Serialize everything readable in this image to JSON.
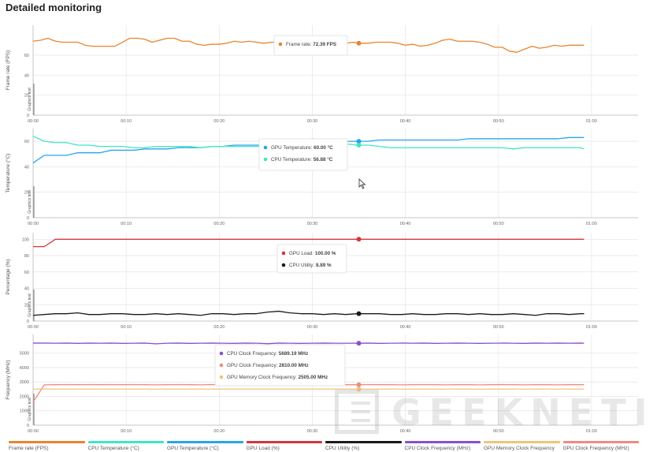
{
  "page": {
    "title": "Detailed monitoring"
  },
  "x_ticks": [
    "00:00",
    "00:10",
    "00:20",
    "00:30",
    "00:40",
    "00:50",
    "01:00"
  ],
  "side_label": "Graphics test",
  "colors": {
    "fps": "#e8842f",
    "cpu_temp": "#3ee6c6",
    "gpu_temp": "#27a6e6",
    "gpu_load": "#d3363c",
    "cpu_util": "#1a1a1a",
    "cpu_clock": "#8a4fc8",
    "gpu_clock": "#ef8a84",
    "gpu_mem": "#efc478",
    "grid": "#e4e4e4"
  },
  "chart_data": [
    {
      "type": "line",
      "ylabel": "Frame rate (FPS)",
      "ylim": [
        0,
        90
      ],
      "yticks": [
        0,
        20,
        40,
        60
      ],
      "x_range": [
        0,
        65
      ],
      "x": [
        0,
        0.8,
        1.6,
        2.4,
        3.2,
        4.0,
        4.8,
        5.6,
        6.4,
        7.2,
        8.0,
        8.8,
        9.6,
        10.4,
        11.2,
        12.0,
        12.8,
        13.6,
        14.4,
        15.2,
        16.0,
        16.8,
        17.6,
        18.4,
        19.2,
        20.0,
        20.8,
        21.6,
        22.4,
        23.2,
        24.0,
        24.8,
        25.6,
        26.4,
        27.2,
        28.0,
        28.8,
        29.6,
        30.4,
        31.2,
        32.0,
        32.8,
        33.6,
        34.4,
        35.2,
        36.0,
        36.8,
        37.6,
        38.4,
        39.2,
        40.0,
        40.8,
        41.6,
        42.4,
        43.2,
        44.0,
        44.8,
        45.6,
        46.4,
        47.2,
        48.0,
        48.8,
        49.6,
        50.4,
        51.2,
        52.0,
        52.8,
        53.6,
        54.4,
        55.2,
        56.0,
        56.8,
        57.6,
        58.4,
        59.2
      ],
      "series": [
        {
          "name": "Frame rate (FPS)",
          "values": [
            74,
            75,
            77,
            74,
            73,
            73,
            73,
            70,
            69,
            69,
            69,
            69,
            73,
            77,
            77,
            76,
            73,
            75,
            77,
            77,
            74,
            74,
            71,
            70,
            71,
            71,
            72,
            74,
            73,
            74,
            73,
            72,
            73,
            73,
            75,
            74,
            74,
            73,
            72,
            72,
            73,
            72,
            72,
            73,
            72,
            72,
            73,
            73,
            73,
            72,
            70,
            71,
            69,
            70,
            72,
            75,
            76,
            74,
            74,
            74,
            73,
            71,
            68,
            68,
            64,
            63,
            66,
            69,
            67,
            68,
            70,
            69,
            70,
            70,
            70
          ]
        }
      ],
      "tooltip": {
        "label": "Frame rate:",
        "value": "72.39 FPS"
      }
    },
    {
      "type": "line",
      "ylabel": "Temperature (°C)",
      "ylim": [
        0,
        70
      ],
      "yticks": [
        0,
        20,
        40,
        60
      ],
      "x_range": [
        0,
        65
      ],
      "x": [
        0,
        1.2,
        2.4,
        3.6,
        4.8,
        6.0,
        7.2,
        8.4,
        9.6,
        10.8,
        12.0,
        13.2,
        14.4,
        15.6,
        16.8,
        18.0,
        19.2,
        20.4,
        21.6,
        22.8,
        24.0,
        25.2,
        26.4,
        27.6,
        28.8,
        30.0,
        31.2,
        32.4,
        33.6,
        34.8,
        36.0,
        37.2,
        38.4,
        39.6,
        40.8,
        42.0,
        43.2,
        44.4,
        45.6,
        46.8,
        48.0,
        49.2,
        50.4,
        51.6,
        52.8,
        54.0,
        55.2,
        56.4,
        57.6,
        58.8,
        59.2
      ],
      "series": [
        {
          "name": "GPU Temperature (°C)",
          "values": [
            43,
            49,
            49,
            49,
            51,
            51,
            51,
            53,
            53,
            53,
            54,
            54,
            54,
            55,
            55,
            55,
            56,
            56,
            57,
            57,
            57,
            57,
            58,
            58,
            59,
            59,
            59,
            59,
            60,
            60,
            60,
            61,
            61,
            61,
            61,
            61,
            61,
            61,
            61,
            62,
            62,
            62,
            62,
            62,
            62,
            62,
            62,
            62,
            63,
            63,
            63
          ]
        },
        {
          "name": "CPU Temperature (°C)",
          "values": [
            64,
            60,
            59,
            59,
            57,
            57,
            56,
            56,
            56,
            55,
            55,
            56,
            56,
            56,
            56,
            55,
            56,
            56,
            56,
            56,
            56,
            56,
            56,
            58,
            60,
            62,
            60,
            58,
            58,
            57,
            57,
            56,
            55,
            55,
            55,
            55,
            55,
            55,
            55,
            55,
            55,
            55,
            55,
            54,
            55,
            55,
            55,
            55,
            55,
            55,
            54
          ]
        }
      ],
      "tooltip": [
        {
          "label": "GPU Temperature:",
          "value": "60.00 °C"
        },
        {
          "label": "CPU Temperature:",
          "value": "56.88 °C"
        }
      ]
    },
    {
      "type": "line",
      "ylabel": "Percentage (%)",
      "ylim": [
        0,
        108
      ],
      "yticks": [
        0,
        20,
        40,
        60,
        80,
        100
      ],
      "x_range": [
        0,
        65
      ],
      "x": [
        0,
        1.2,
        2.4,
        3.6,
        4.8,
        6.0,
        7.2,
        8.4,
        9.6,
        10.8,
        12.0,
        13.2,
        14.4,
        15.6,
        16.8,
        18.0,
        19.2,
        20.4,
        21.6,
        22.8,
        24.0,
        25.2,
        26.4,
        27.6,
        28.8,
        30.0,
        31.2,
        32.4,
        33.6,
        34.8,
        36.0,
        37.2,
        38.4,
        39.6,
        40.8,
        42.0,
        43.2,
        44.4,
        45.6,
        46.8,
        48.0,
        49.2,
        50.4,
        51.6,
        52.8,
        54.0,
        55.2,
        56.4,
        57.6,
        58.8,
        59.2
      ],
      "series": [
        {
          "name": "GPU Load (%)",
          "values": [
            91,
            91,
            100,
            100,
            100,
            100,
            100,
            100,
            100,
            100,
            100,
            100,
            100,
            100,
            100,
            100,
            100,
            100,
            100,
            100,
            100,
            100,
            100,
            100,
            100,
            100,
            100,
            100,
            100,
            100,
            100,
            100,
            100,
            100,
            100,
            100,
            100,
            100,
            100,
            100,
            100,
            100,
            100,
            100,
            100,
            100,
            100,
            100,
            100,
            100,
            100
          ]
        },
        {
          "name": "CPU Utility (%)",
          "values": [
            7,
            8,
            9,
            9,
            10,
            8,
            8,
            9,
            9,
            8,
            8,
            9,
            8,
            9,
            8,
            7,
            9,
            9,
            8,
            9,
            9,
            11,
            12,
            10,
            9,
            9,
            8,
            9,
            8,
            9,
            9,
            9,
            8,
            8,
            9,
            8,
            8,
            9,
            9,
            8,
            9,
            8,
            8,
            9,
            8,
            7,
            9,
            9,
            8,
            9,
            9
          ]
        }
      ],
      "tooltip": [
        {
          "label": "GPU Load:",
          "value": "100.00 %"
        },
        {
          "label": "CPU Utility:",
          "value": "8.89 %"
        }
      ]
    },
    {
      "type": "line",
      "ylabel": "Frequency (MHz)",
      "ylim": [
        0,
        6300
      ],
      "yticks": [
        0,
        1000,
        2000,
        3000,
        4000,
        5000
      ],
      "x_range": [
        0,
        65
      ],
      "x": [
        0,
        1.2,
        2.4,
        3.6,
        4.8,
        6.0,
        7.2,
        8.4,
        9.6,
        10.8,
        12.0,
        13.2,
        14.4,
        15.6,
        16.8,
        18.0,
        19.2,
        20.4,
        21.6,
        22.8,
        24.0,
        25.2,
        26.4,
        27.6,
        28.8,
        30.0,
        31.2,
        32.4,
        33.6,
        34.8,
        36.0,
        37.2,
        38.4,
        39.6,
        40.8,
        42.0,
        43.2,
        44.4,
        45.6,
        46.8,
        48.0,
        49.2,
        50.4,
        51.6,
        52.8,
        54.0,
        55.2,
        56.4,
        57.6,
        58.8,
        59.2
      ],
      "series": [
        {
          "name": "CPU Clock Frequency (MHz)",
          "values": [
            5700,
            5700,
            5690,
            5700,
            5680,
            5700,
            5690,
            5700,
            5680,
            5690,
            5700,
            5650,
            5690,
            5700,
            5680,
            5690,
            5700,
            5690,
            5680,
            5700,
            5690,
            5660,
            5700,
            5690,
            5680,
            5690,
            5700,
            5690,
            5690,
            5689,
            5700,
            5680,
            5690,
            5700,
            5690,
            5700,
            5680,
            5690,
            5700,
            5690,
            5680,
            5690,
            5700,
            5690,
            5680,
            5700,
            5690,
            5700,
            5690,
            5700,
            5690
          ]
        },
        {
          "name": "GPU Clock Frequency (MHz)",
          "values": [
            1600,
            2800,
            2810,
            2820,
            2810,
            2820,
            2810,
            2820,
            2810,
            2820,
            2810,
            2800,
            2810,
            2820,
            2810,
            2800,
            2820,
            2810,
            2800,
            2810,
            2820,
            2810,
            2800,
            2810,
            2820,
            2810,
            2800,
            2810,
            2810,
            2810,
            2820,
            2810,
            2810,
            2800,
            2810,
            2820,
            2810,
            2800,
            2810,
            2810,
            2800,
            2810,
            2820,
            2810,
            2800,
            2810,
            2810,
            2800,
            2810,
            2810,
            2810
          ]
        },
        {
          "name": "GPU Memory Clock Frequency (MHz)",
          "values": [
            2505,
            2505,
            2505,
            2505,
            2505,
            2505,
            2505,
            2505,
            2505,
            2505,
            2505,
            2505,
            2505,
            2505,
            2505,
            2505,
            2505,
            2505,
            2505,
            2505,
            2505,
            2505,
            2505,
            2505,
            2505,
            2505,
            2505,
            2505,
            2505,
            2505,
            2505,
            2505,
            2505,
            2505,
            2505,
            2505,
            2505,
            2505,
            2505,
            2505,
            2505,
            2505,
            2505,
            2505,
            2505,
            2505,
            2505,
            2505,
            2505,
            2505,
            2505
          ]
        }
      ],
      "tooltip": [
        {
          "label": "CPU Clock Frequency:",
          "value": "5689.19 MHz"
        },
        {
          "label": "GPU Clock Frequency:",
          "value": "2810.00 MHz"
        },
        {
          "label": "GPU Memory Clock Frequency:",
          "value": "2505.00 MHz"
        }
      ]
    }
  ],
  "legend": [
    {
      "label": "Frame rate (FPS)",
      "color": "#e8842f"
    },
    {
      "label": "CPU Temperature (°C)",
      "color": "#3ee6c6"
    },
    {
      "label": "GPU Temperature (°C)",
      "color": "#27a6e6"
    },
    {
      "label": "GPU Load (%)",
      "color": "#d3363c"
    },
    {
      "label": "CPU Utility (%)",
      "color": "#1a1a1a"
    },
    {
      "label": "CPU Clock Frequency (MHz)",
      "color": "#8a4fc8"
    },
    {
      "label": "GPU Memory Clock Frequency",
      "color": "#efc478"
    },
    {
      "label": "GPU Clock Frequency (MHz)",
      "color": "#ef8a84"
    }
  ],
  "hover_time": 35,
  "watermark": {
    "text": "GEEKNETIC"
  }
}
